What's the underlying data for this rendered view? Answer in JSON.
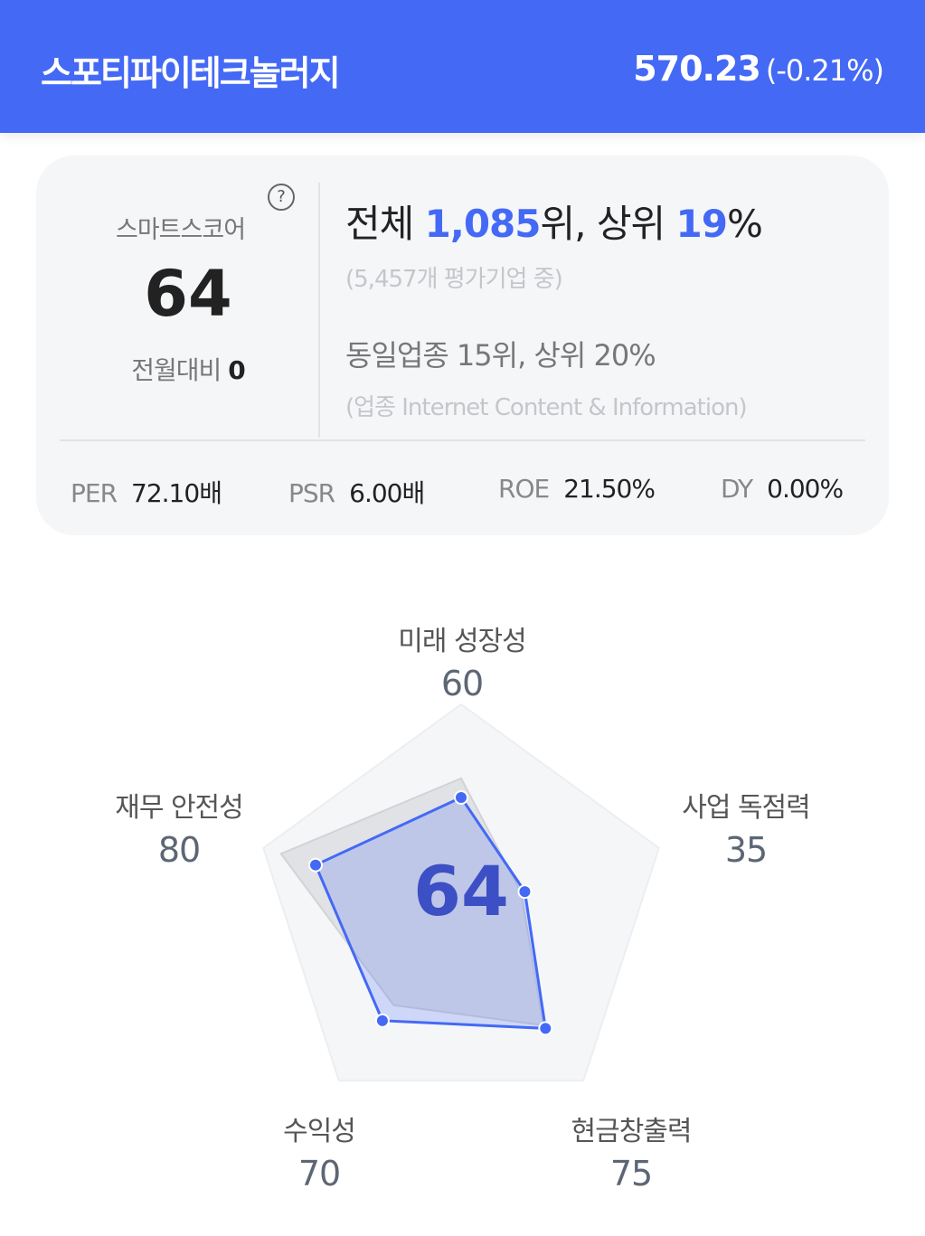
{
  "header": {
    "title": "스포티파이테크놀러지",
    "price": "570.23",
    "change": "(-0.21%)"
  },
  "card": {
    "score_label": "스마트스코어",
    "help_icon": "question-circle-icon",
    "help_symbol": "?",
    "score": "64",
    "mom_label": "전월대비",
    "mom_value": "0",
    "rank_prefix": "전체 ",
    "rank_value": "1,085",
    "rank_mid": "위, 상위 ",
    "rank_pct": "19",
    "rank_suffix": "%",
    "rank_sub": "(5,457개 평가기업 중)",
    "industry_rank": "동일업종 15위, 상위 20%",
    "industry_sub": "(업종 Internet Content & Information)",
    "metrics": [
      {
        "key": "PER",
        "value": "72.10배"
      },
      {
        "key": "PSR",
        "value": "6.00배"
      },
      {
        "key": "ROE",
        "value": "21.50%"
      },
      {
        "key": "DY",
        "value": "0.00%"
      }
    ]
  },
  "chart_data": {
    "type": "radar",
    "center_label": "64",
    "categories": [
      "미래 성장성",
      "사업 독점력",
      "현금창출력",
      "수익성",
      "재무 안전성"
    ],
    "category_values": [
      "60",
      "35",
      "75",
      "70",
      "80"
    ],
    "range": [
      0,
      100
    ],
    "series": [
      {
        "values": [
          70,
          33,
          73,
          60,
          99
        ],
        "color": "#dcdde0"
      },
      {
        "values": [
          60,
          35,
          75,
          70,
          80
        ],
        "color": "#4469f5"
      }
    ],
    "colors": {
      "accent": "#4469f5",
      "center_text": "#3d4fc4"
    }
  }
}
